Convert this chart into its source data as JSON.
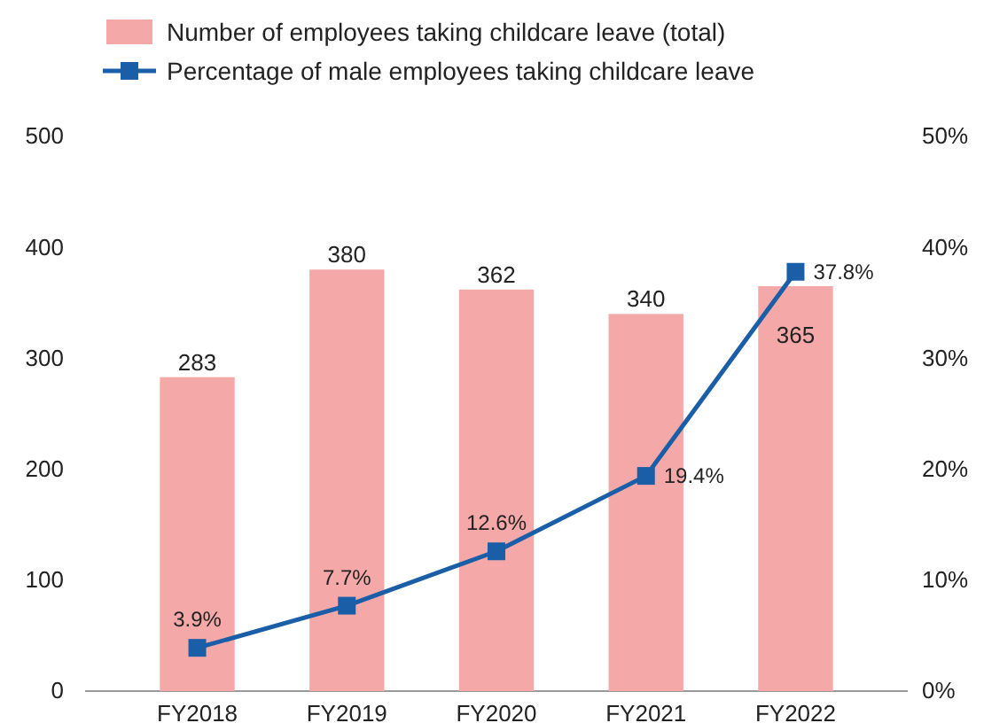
{
  "chart_data": {
    "type": "bar",
    "categories": [
      "FY2018",
      "FY2019",
      "FY2020",
      "FY2021",
      "FY2022"
    ],
    "series": [
      {
        "name": "Number of employees taking childcare leave (total)",
        "color": "#f4a9a8",
        "values": [
          283,
          380,
          362,
          340,
          365
        ],
        "value_labels": [
          "283",
          "380",
          "362",
          "340",
          "365"
        ]
      },
      {
        "name": "Percentage of male employees taking childcare leave",
        "type": "line",
        "axis": "y2",
        "color": "#1a5ea8",
        "marker": "square",
        "values": [
          3.9,
          7.7,
          12.6,
          19.4,
          37.8
        ],
        "value_labels": [
          "3.9%",
          "7.7%",
          "12.6%",
          "19.4%",
          "37.8%"
        ]
      }
    ],
    "ylim": [
      0,
      500
    ],
    "yticks": [
      0,
      100,
      200,
      300,
      400,
      500
    ],
    "y2lim": [
      0,
      50
    ],
    "y2ticks": [
      {
        "value": 0,
        "label": "0%"
      },
      {
        "value": 10,
        "label": "10%"
      },
      {
        "value": 20,
        "label": "20%"
      },
      {
        "value": 30,
        "label": "30%"
      },
      {
        "value": 40,
        "label": "40%"
      },
      {
        "value": 50,
        "label": "50%"
      }
    ],
    "grid": false,
    "legend": "top left"
  }
}
